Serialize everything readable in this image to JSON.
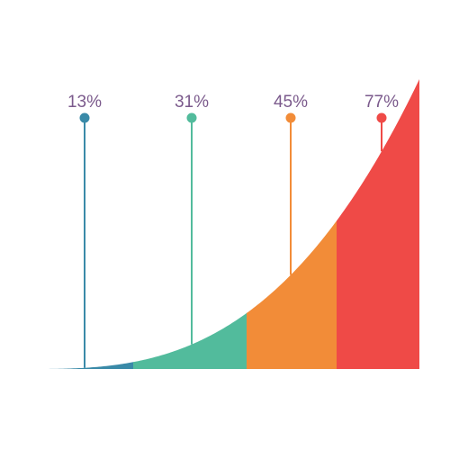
{
  "chart_data": {
    "type": "area",
    "title": "",
    "xlabel": "",
    "ylabel": "",
    "segments": [
      {
        "value": 13,
        "label": "13%",
        "color": "#3a8aa8"
      },
      {
        "value": 31,
        "label": "31%",
        "color": "#52bb9c"
      },
      {
        "value": 45,
        "label": "45%",
        "color": "#f28c38"
      },
      {
        "value": 77,
        "label": "77%",
        "color": "#ef4a47"
      }
    ]
  }
}
